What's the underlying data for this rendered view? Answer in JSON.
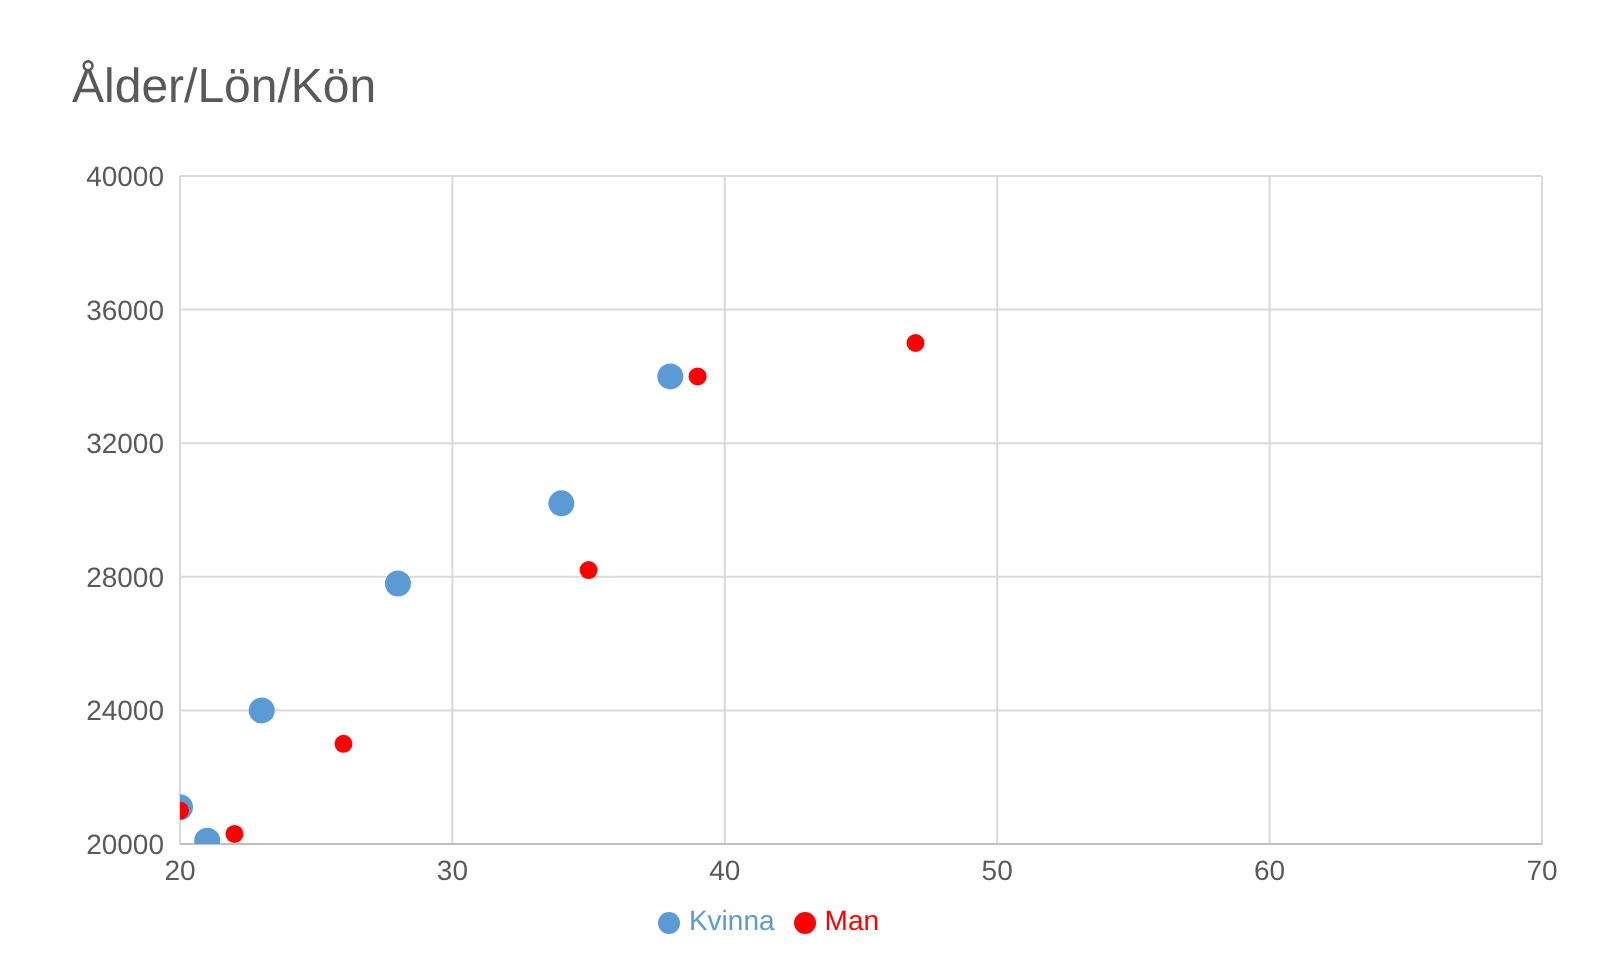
{
  "chart_data": {
    "type": "scatter",
    "title": "Ålder/Lön/Kön",
    "series": [
      {
        "name": "Kvinna",
        "color": "#5b9bd5",
        "x": [
          20,
          21,
          23,
          28,
          34,
          38
        ],
        "values": [
          21100,
          20100,
          24000,
          27800,
          30200,
          34000
        ]
      },
      {
        "name": "Man",
        "color": "#ff0000",
        "x": [
          20,
          22,
          26,
          35,
          39,
          47
        ],
        "values": [
          21000,
          20300,
          23000,
          28200,
          34000,
          35000
        ]
      }
    ],
    "xlim": [
      20,
      70
    ],
    "xticks": [
      20,
      30,
      40,
      50,
      60,
      70
    ],
    "ylim": [
      20000,
      40000
    ],
    "yticks": [
      20000,
      24000,
      28000,
      32000,
      36000,
      40000
    ],
    "grid": true,
    "legend": "bottom",
    "marker": "circle"
  }
}
